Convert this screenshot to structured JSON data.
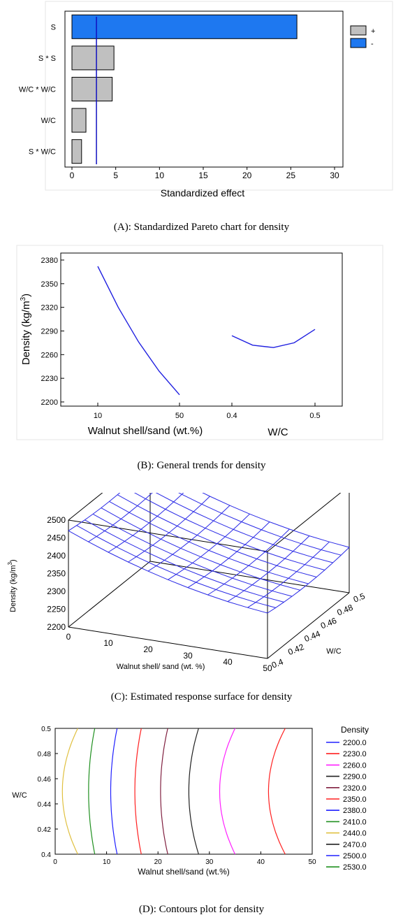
{
  "chart_data": [
    {
      "panel": "A",
      "type": "bar",
      "orientation": "horizontal",
      "categories": [
        "S",
        "S * S",
        "W/C * W/C",
        "W/C",
        "S * W/C"
      ],
      "values": [
        25.7,
        4.8,
        4.6,
        1.6,
        1.1
      ],
      "signs": [
        "-",
        "+",
        "+",
        "+",
        "+"
      ],
      "reference_line": 2.8,
      "xlabel": "Standardized effect",
      "xlim": [
        0,
        30
      ],
      "xticks": [
        0,
        5,
        10,
        15,
        20,
        25,
        30
      ],
      "legend": [
        {
          "label": "+",
          "color": "#c0c0c0"
        },
        {
          "label": "-",
          "color": "#1e78f0"
        }
      ],
      "legend_position": "top-right",
      "caption": "(A): Standardized Pareto chart for density"
    },
    {
      "panel": "B",
      "type": "line",
      "ylabel": "Density (kg/m³)",
      "ylabel_base": "Density (kg/m",
      "ylabel_sup": "3",
      "ylabel_end": ")",
      "ylim": [
        2200,
        2380
      ],
      "yticks": [
        2200,
        2230,
        2260,
        2290,
        2320,
        2350,
        2380
      ],
      "series": [
        {
          "factor_label": "Walnut shell/sand (wt.%)",
          "xlim": [
            10,
            50
          ],
          "x_ticks": [
            10,
            50
          ],
          "x": [
            10,
            20,
            30,
            40,
            50
          ],
          "y": [
            2372,
            2320,
            2276,
            2239,
            2209
          ]
        },
        {
          "factor_label": "W/C",
          "xlim": [
            0.4,
            0.5
          ],
          "x_ticks": [
            0.4,
            0.5
          ],
          "x": [
            0.4,
            0.425,
            0.45,
            0.475,
            0.5
          ],
          "y": [
            2284,
            2272,
            2269,
            2275,
            2292
          ]
        }
      ],
      "caption": "(B): General trends for density"
    },
    {
      "panel": "C",
      "type": "surface",
      "xlabel": "Walnut shell/ sand (wt. %)",
      "ylabel": "W/C",
      "zlabel_base": "Density (kg/m",
      "zlabel_sup": "3",
      "zlabel_end": ")",
      "x_ticks": [
        0,
        10,
        20,
        30,
        40,
        50
      ],
      "y_ticks": [
        0.4,
        0.42,
        0.44,
        0.46,
        0.48,
        0.5
      ],
      "z_ticks": [
        2200,
        2250,
        2300,
        2350,
        2400,
        2450,
        2500
      ],
      "xlim": [
        0,
        50
      ],
      "ylim": [
        0.4,
        0.5
      ],
      "zlim": [
        2200,
        2500
      ],
      "caption": "(C): Estimated response surface for density"
    },
    {
      "panel": "D",
      "type": "contour",
      "xlabel": "Walnut shell/sand (wt.%)",
      "ylabel": "W/C",
      "xlim": [
        0,
        50
      ],
      "ylim": [
        0.4,
        0.5
      ],
      "x_ticks": [
        0,
        10,
        20,
        30,
        40,
        50
      ],
      "y_ticks": [
        0.4,
        0.42,
        0.44,
        0.46,
        0.48,
        0.5
      ],
      "legend_title": "Density",
      "levels": [
        {
          "label": "2200.0",
          "color": "#2020ff"
        },
        {
          "label": "2230.0",
          "color": "#ff2020"
        },
        {
          "label": "2260.0",
          "color": "#ff20ff"
        },
        {
          "label": "2290.0",
          "color": "#202020"
        },
        {
          "label": "2320.0",
          "color": "#802040"
        },
        {
          "label": "2350.0",
          "color": "#ff2020"
        },
        {
          "label": "2380.0",
          "color": "#2020ff"
        },
        {
          "label": "2410.0",
          "color": "#209020"
        },
        {
          "label": "2440.0",
          "color": "#e0c040"
        },
        {
          "label": "2470.0",
          "color": "#202020"
        },
        {
          "label": "2500.0",
          "color": "#2020ff"
        },
        {
          "label": "2530.0",
          "color": "#209020"
        }
      ],
      "caption": "(D): Contours plot for density"
    }
  ]
}
